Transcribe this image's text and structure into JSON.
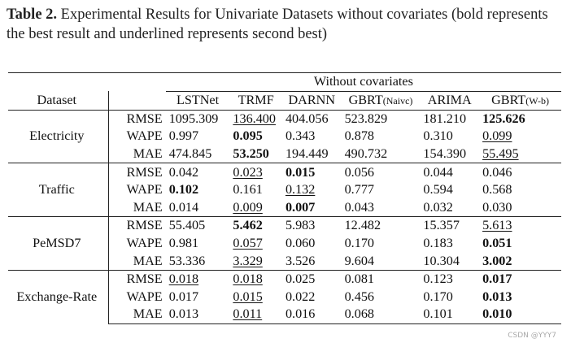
{
  "caption": {
    "label": "Table 2.",
    "text": " Experimental Results for Univariate Datasets without covariates (bold represents the best result and underlined represents second best)"
  },
  "table": {
    "group_header": "Without covariates",
    "dataset_header": "Dataset",
    "columns": [
      {
        "name": "LSTNet",
        "suffix": ""
      },
      {
        "name": "TRMF",
        "suffix": ""
      },
      {
        "name": "DARNN",
        "suffix": ""
      },
      {
        "name": "GBRT",
        "suffix": "(Naivc)"
      },
      {
        "name": "ARIMA",
        "suffix": ""
      },
      {
        "name": "GBRT",
        "suffix": "(W-b)"
      }
    ],
    "groups": [
      {
        "dataset": "Electricity",
        "rows": [
          {
            "metric": "RMSE",
            "values": [
              {
                "v": "1095.309",
                "s": ""
              },
              {
                "v": "136.400",
                "s": "ul"
              },
              {
                "v": "404.056",
                "s": ""
              },
              {
                "v": "523.829",
                "s": ""
              },
              {
                "v": "181.210",
                "s": ""
              },
              {
                "v": "125.626",
                "s": "bold"
              }
            ]
          },
          {
            "metric": "WAPE",
            "values": [
              {
                "v": "0.997",
                "s": ""
              },
              {
                "v": "0.095",
                "s": "bold"
              },
              {
                "v": "0.343",
                "s": ""
              },
              {
                "v": "0.878",
                "s": ""
              },
              {
                "v": "0.310",
                "s": ""
              },
              {
                "v": "0.099",
                "s": "ul"
              }
            ]
          },
          {
            "metric": "MAE",
            "values": [
              {
                "v": "474.845",
                "s": ""
              },
              {
                "v": "53.250",
                "s": "bold"
              },
              {
                "v": "194.449",
                "s": ""
              },
              {
                "v": "490.732",
                "s": ""
              },
              {
                "v": "154.390",
                "s": ""
              },
              {
                "v": "55.495",
                "s": "ul"
              }
            ]
          }
        ]
      },
      {
        "dataset": "Traffic",
        "rows": [
          {
            "metric": "RMSE",
            "values": [
              {
                "v": "0.042",
                "s": ""
              },
              {
                "v": "0.023",
                "s": "ul"
              },
              {
                "v": "0.015",
                "s": "bold"
              },
              {
                "v": "0.056",
                "s": ""
              },
              {
                "v": "0.044",
                "s": ""
              },
              {
                "v": "0.046",
                "s": ""
              }
            ]
          },
          {
            "metric": "WAPE",
            "values": [
              {
                "v": "0.102",
                "s": "bold"
              },
              {
                "v": "0.161",
                "s": ""
              },
              {
                "v": "0.132",
                "s": "ul"
              },
              {
                "v": "0.777",
                "s": ""
              },
              {
                "v": "0.594",
                "s": ""
              },
              {
                "v": "0.568",
                "s": ""
              }
            ]
          },
          {
            "metric": "MAE",
            "values": [
              {
                "v": "0.014",
                "s": ""
              },
              {
                "v": "0.009",
                "s": "ul"
              },
              {
                "v": "0.007",
                "s": "bold"
              },
              {
                "v": "0.043",
                "s": ""
              },
              {
                "v": "0.032",
                "s": ""
              },
              {
                "v": "0.030",
                "s": ""
              }
            ]
          }
        ]
      },
      {
        "dataset": "PeMSD7",
        "rows": [
          {
            "metric": "RMSE",
            "values": [
              {
                "v": "55.405",
                "s": ""
              },
              {
                "v": "5.462",
                "s": "bold"
              },
              {
                "v": "5.983",
                "s": ""
              },
              {
                "v": "12.482",
                "s": ""
              },
              {
                "v": "15.357",
                "s": ""
              },
              {
                "v": "5.613",
                "s": "ul"
              }
            ]
          },
          {
            "metric": "WAPE",
            "values": [
              {
                "v": "0.981",
                "s": ""
              },
              {
                "v": "0.057",
                "s": "ul"
              },
              {
                "v": "0.060",
                "s": ""
              },
              {
                "v": "0.170",
                "s": ""
              },
              {
                "v": "0.183",
                "s": ""
              },
              {
                "v": "0.051",
                "s": "bold"
              }
            ]
          },
          {
            "metric": "MAE",
            "values": [
              {
                "v": "53.336",
                "s": ""
              },
              {
                "v": "3.329",
                "s": "ul"
              },
              {
                "v": "3.526",
                "s": ""
              },
              {
                "v": "9.604",
                "s": ""
              },
              {
                "v": "10.304",
                "s": ""
              },
              {
                "v": "3.002",
                "s": "bold"
              }
            ]
          }
        ]
      },
      {
        "dataset": "Exchange-Rate",
        "rows": [
          {
            "metric": "RMSE",
            "values": [
              {
                "v": "0.018",
                "s": "ul"
              },
              {
                "v": "0.018",
                "s": "ul"
              },
              {
                "v": "0.025",
                "s": ""
              },
              {
                "v": "0.081",
                "s": ""
              },
              {
                "v": "0.123",
                "s": ""
              },
              {
                "v": "0.017",
                "s": "bold"
              }
            ]
          },
          {
            "metric": "WAPE",
            "values": [
              {
                "v": "0.017",
                "s": ""
              },
              {
                "v": "0.015",
                "s": "ul"
              },
              {
                "v": "0.022",
                "s": ""
              },
              {
                "v": "0.456",
                "s": ""
              },
              {
                "v": "0.170",
                "s": ""
              },
              {
                "v": "0.013",
                "s": "bold"
              }
            ]
          },
          {
            "metric": "MAE",
            "values": [
              {
                "v": "0.013",
                "s": ""
              },
              {
                "v": "0.011",
                "s": "ul"
              },
              {
                "v": "0.016",
                "s": ""
              },
              {
                "v": "0.068",
                "s": ""
              },
              {
                "v": "0.101",
                "s": ""
              },
              {
                "v": "0.010",
                "s": "bold"
              }
            ]
          }
        ]
      }
    ]
  },
  "watermark": "CSDN @YYY7"
}
